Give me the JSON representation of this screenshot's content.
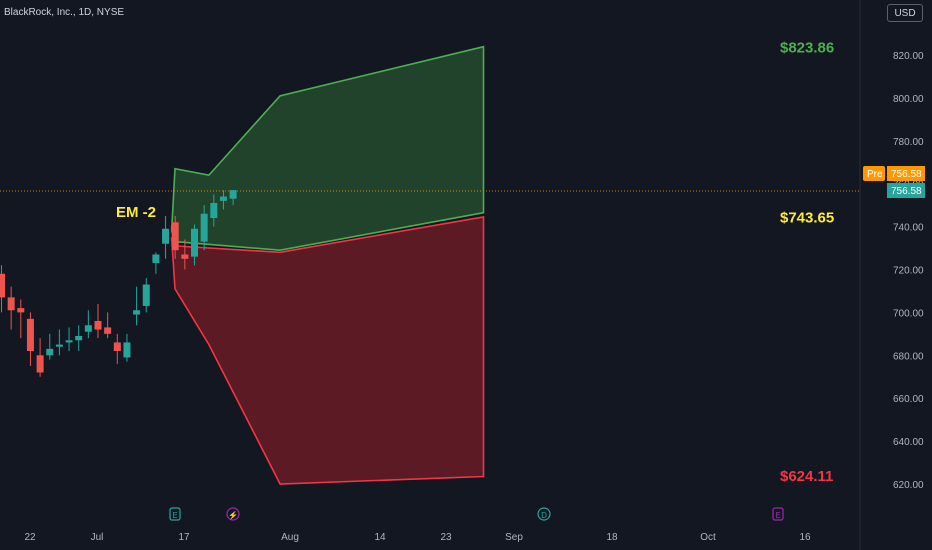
{
  "header": {
    "symbol": "BlackRock, Inc., 1D, NYSE",
    "currency": "USD"
  },
  "colors": {
    "background": "#131722",
    "up": "#26a69a",
    "down": "#ef5350",
    "green_zone": "#4caf50",
    "red_zone": "#f23645",
    "label_yellow": "#ffeb3b",
    "pre_badge": "#ff9800"
  },
  "chart_data": {
    "type": "candlestick",
    "title": "",
    "ylim": [
      605,
      845
    ],
    "y_ticks": [
      "820.00",
      "800.00",
      "780.00",
      "760.00",
      "740.00",
      "720.00",
      "700.00",
      "680.00",
      "660.00",
      "640.00",
      "620.00"
    ],
    "x_ticks": [
      "22",
      "Jul",
      "17",
      "Aug",
      "14",
      "23",
      "Sep",
      "18",
      "Oct",
      "16"
    ],
    "event_markers": [
      "E",
      "⚡",
      "D",
      "E"
    ],
    "candles": [
      {
        "o": 718,
        "h": 722,
        "l": 700,
        "c": 707
      },
      {
        "o": 707,
        "h": 712,
        "l": 692,
        "c": 701
      },
      {
        "o": 702,
        "h": 706,
        "l": 688,
        "c": 700
      },
      {
        "o": 697,
        "h": 700,
        "l": 675,
        "c": 682
      },
      {
        "o": 680,
        "h": 688,
        "l": 670,
        "c": 672
      },
      {
        "o": 680,
        "h": 690,
        "l": 678,
        "c": 683
      },
      {
        "o": 684,
        "h": 692,
        "l": 680,
        "c": 685
      },
      {
        "o": 686,
        "h": 693,
        "l": 682,
        "c": 687
      },
      {
        "o": 687,
        "h": 694,
        "l": 682,
        "c": 689
      },
      {
        "o": 691,
        "h": 701,
        "l": 688,
        "c": 694
      },
      {
        "o": 696,
        "h": 704,
        "l": 688,
        "c": 692
      },
      {
        "o": 693,
        "h": 700,
        "l": 688,
        "c": 690
      },
      {
        "o": 686,
        "h": 690,
        "l": 676,
        "c": 682
      },
      {
        "o": 679,
        "h": 690,
        "l": 677,
        "c": 686
      },
      {
        "o": 699,
        "h": 712,
        "l": 694,
        "c": 701
      },
      {
        "o": 703,
        "h": 716,
        "l": 700,
        "c": 713
      },
      {
        "o": 723,
        "h": 728,
        "l": 718,
        "c": 727
      },
      {
        "o": 732,
        "h": 745,
        "l": 725,
        "c": 739
      },
      {
        "o": 742,
        "h": 745,
        "l": 725,
        "c": 729
      },
      {
        "o": 727,
        "h": 734,
        "l": 720,
        "c": 725
      },
      {
        "o": 726,
        "h": 741,
        "l": 722,
        "c": 739
      },
      {
        "o": 733,
        "h": 750,
        "l": 729,
        "c": 746
      },
      {
        "o": 744,
        "h": 755,
        "l": 740,
        "c": 751
      },
      {
        "o": 752,
        "h": 757,
        "l": 748,
        "c": 754
      },
      {
        "o": 753,
        "h": 757,
        "l": 750,
        "c": 757
      }
    ],
    "bull_zone": {
      "upper": [
        [
          "Jul 13",
          738
        ],
        [
          "Jul 14",
          767
        ],
        [
          "Jul 24",
          764
        ],
        [
          "Aug 14",
          801
        ],
        [
          "Oct 13",
          823.86
        ]
      ],
      "lower": [
        [
          "Jul 13",
          738
        ],
        [
          "Jul 14",
          733
        ],
        [
          "Aug 14",
          729
        ],
        [
          "Oct 13",
          746.5
        ]
      ]
    },
    "bear_zone": {
      "upper": [
        [
          "Jul 13",
          735
        ],
        [
          "Jul 14",
          731
        ],
        [
          "Aug 14",
          728
        ],
        [
          "Oct 13",
          744.5
        ]
      ],
      "lower": [
        [
          "Jul 13",
          735
        ],
        [
          "Jul 14",
          711
        ],
        [
          "Jul 24",
          685
        ],
        [
          "Aug 14",
          620
        ],
        [
          "Oct 13",
          623.5
        ]
      ]
    },
    "last_price": 756.58,
    "premarket_price": 756.58,
    "annotations": {
      "em_label": "EM -2",
      "upper_target": "$823.86",
      "mid_target": "$743.65",
      "lower_target": "$624.11",
      "pre_label": "Pre",
      "pre_value": "756.58",
      "price_value": "756.58"
    }
  }
}
